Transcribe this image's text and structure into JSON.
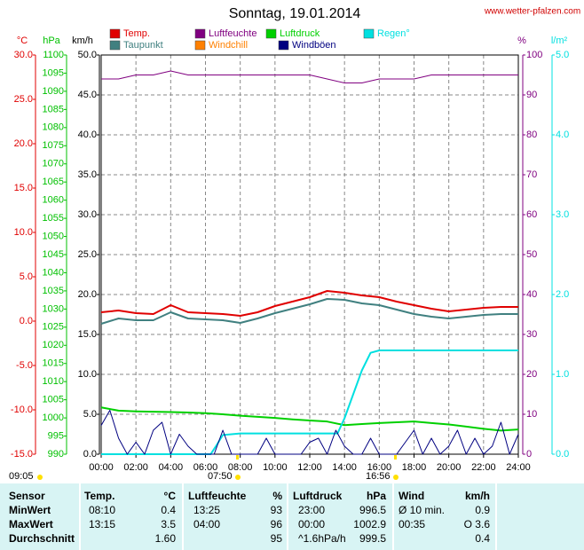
{
  "chart_data": {
    "type": "line",
    "title": "Sonntag, 19.01.2014",
    "source": "www.wetter-pfalzen.com",
    "xlim": [
      0,
      24
    ],
    "xticks": [
      {
        "value": 0,
        "label": "00:00"
      },
      {
        "value": 2,
        "label": "02:00"
      },
      {
        "value": 4,
        "label": "04:00"
      },
      {
        "value": 6,
        "label": "06:00"
      },
      {
        "value": 8,
        "label": "08:00"
      },
      {
        "value": 10,
        "label": "10:00"
      },
      {
        "value": 12,
        "label": "12:00"
      },
      {
        "value": 14,
        "label": "14:00"
      },
      {
        "value": 16,
        "label": "16:00"
      },
      {
        "value": 18,
        "label": "18:00"
      },
      {
        "value": 20,
        "label": "20:00"
      },
      {
        "value": 22,
        "label": "22:00"
      },
      {
        "value": 24,
        "label": "24:00"
      }
    ],
    "grid": true,
    "axes": [
      {
        "label": "°C",
        "color": "#e00000",
        "lim": [
          -15,
          30
        ],
        "ticks": [
          {
            "value": -15,
            "label": "-15.0"
          },
          {
            "value": -10,
            "label": "-10.0"
          },
          {
            "value": -5,
            "label": "-5.0"
          },
          {
            "value": 0,
            "label": "0.0"
          },
          {
            "value": 5,
            "label": "5.0"
          },
          {
            "value": 10,
            "label": "10.0"
          },
          {
            "value": 15,
            "label": "15.0"
          },
          {
            "value": 20,
            "label": "20.0"
          },
          {
            "value": 25,
            "label": "25.0"
          },
          {
            "value": 30,
            "label": "30.0"
          }
        ]
      },
      {
        "label": "hPa",
        "color": "#00c000",
        "lim": [
          990,
          1100
        ],
        "ticks": [
          990,
          995,
          1000,
          1005,
          1010,
          1015,
          1020,
          1025,
          1030,
          1035,
          1040,
          1045,
          1050,
          1055,
          1060,
          1065,
          1070,
          1075,
          1080,
          1085,
          1090,
          1095,
          1100
        ]
      },
      {
        "label": "km/h",
        "color": "#000000",
        "lim": [
          0,
          50
        ],
        "grid": true,
        "ticks": [
          {
            "value": 0,
            "label": "0.0"
          },
          {
            "value": 5,
            "label": "5.0"
          },
          {
            "value": 10,
            "label": "10.0"
          },
          {
            "value": 15,
            "label": "15.0"
          },
          {
            "value": 20,
            "label": "20.0"
          },
          {
            "value": 25,
            "label": "25.0"
          },
          {
            "value": 30,
            "label": "30.0"
          },
          {
            "value": 35,
            "label": "35.0"
          },
          {
            "value": 40,
            "label": "40.0"
          },
          {
            "value": 45,
            "label": "45.0"
          },
          {
            "value": 50,
            "label": "50.0"
          }
        ]
      },
      {
        "label": "%",
        "color": "#800080",
        "lim": [
          0,
          100
        ],
        "ticks": [
          0,
          10,
          20,
          30,
          40,
          50,
          60,
          70,
          80,
          90,
          100
        ]
      },
      {
        "label": "l/m²",
        "color": "#00e0e0",
        "lim": [
          0,
          5
        ],
        "ticks": [
          {
            "value": 0,
            "label": "0.0"
          },
          {
            "value": 1,
            "label": "1.0"
          },
          {
            "value": 2,
            "label": "2.0"
          },
          {
            "value": 3,
            "label": "3.0"
          },
          {
            "value": 4,
            "label": "4.0"
          },
          {
            "value": 5,
            "label": "5.0"
          }
        ]
      }
    ],
    "x": [
      0,
      1,
      2,
      3,
      4,
      5,
      6,
      7,
      8,
      9,
      10,
      11,
      12,
      13,
      14,
      15,
      16,
      17,
      18,
      19,
      20,
      21,
      22,
      23,
      24
    ],
    "series": [
      {
        "name": "Temp.",
        "color": "#e00000",
        "axis": 0,
        "values": [
          1.0,
          1.2,
          0.9,
          0.8,
          1.8,
          1.0,
          0.9,
          0.8,
          0.6,
          1.0,
          1.7,
          2.2,
          2.7,
          3.4,
          3.2,
          2.9,
          2.7,
          2.2,
          1.8,
          1.4,
          1.1,
          1.3,
          1.5,
          1.6,
          1.6
        ]
      },
      {
        "name": "Luftfeuchte",
        "color": "#800080",
        "axis": 3,
        "values": [
          94,
          94,
          95,
          95,
          96,
          95,
          95,
          95,
          95,
          95,
          95,
          95,
          95,
          94,
          93,
          93,
          94,
          94,
          94,
          95,
          95,
          95,
          95,
          95,
          95
        ]
      },
      {
        "name": "Luftdruck",
        "color": "#00d000",
        "axis": 1,
        "values": [
          1002.9,
          1002.0,
          1001.8,
          1001.7,
          1001.6,
          1001.5,
          1001.3,
          1001.0,
          1000.6,
          1000.3,
          1000.0,
          999.6,
          999.3,
          999.0,
          998.0,
          998.3,
          998.6,
          998.8,
          999.0,
          998.6,
          998.2,
          997.6,
          997.0,
          996.5,
          996.8
        ]
      },
      {
        "name": "Regen°",
        "color": "#00e0e0",
        "axis": 4,
        "x": [
          0,
          6.3,
          6.6,
          7,
          8,
          13.6,
          14,
          14.5,
          15,
          15.5,
          16,
          24
        ],
        "values": [
          0,
          0,
          0.1,
          0.24,
          0.26,
          0.26,
          0.45,
          0.75,
          1.05,
          1.27,
          1.3,
          1.3
        ]
      },
      {
        "name": "Taupunkt",
        "color": "#408080",
        "axis": 0,
        "values": [
          -0.3,
          0.3,
          0.1,
          0.1,
          1.0,
          0.3,
          0.2,
          0.1,
          -0.2,
          0.3,
          0.9,
          1.4,
          1.9,
          2.5,
          2.4,
          2.0,
          1.8,
          1.3,
          0.8,
          0.5,
          0.3,
          0.5,
          0.7,
          0.8,
          0.8
        ]
      },
      {
        "name": "Windchill",
        "color": "#ff8000",
        "axis": 0
      },
      {
        "name": "Windböen",
        "color": "#000080",
        "axis": 2,
        "x": [
          0,
          0.5,
          1,
          1.5,
          2,
          2.5,
          3,
          3.5,
          4,
          4.5,
          5,
          5.5,
          6,
          6.5,
          7,
          7.5,
          8,
          8.5,
          9,
          9.5,
          10,
          10.5,
          11,
          11.5,
          12,
          12.5,
          13,
          13.5,
          14,
          14.5,
          15,
          15.5,
          16,
          16.5,
          17,
          17.5,
          18,
          18.5,
          19,
          19.5,
          20,
          20.5,
          21,
          21.5,
          22,
          22.5,
          23,
          23.5,
          24
        ],
        "values": [
          3.6,
          5.5,
          2,
          0,
          1.5,
          0,
          3,
          4,
          0,
          2.5,
          1,
          0,
          0,
          0,
          3,
          0,
          0,
          0,
          0,
          2,
          0,
          0,
          0,
          0,
          1.5,
          2,
          0,
          3,
          1,
          0,
          0,
          2,
          0,
          0,
          0,
          1.5,
          3,
          0,
          2,
          0,
          1,
          3,
          0,
          2,
          0,
          1,
          4,
          0,
          2.5
        ]
      }
    ],
    "annotations": [
      "09:05",
      "07:50",
      "16:56"
    ]
  },
  "table": {
    "header": [
      "Sensor",
      "Temp.",
      "°C",
      "Luftfeuchte",
      "%",
      "Luftdruck",
      "hPa",
      "Wind",
      "km/h"
    ],
    "rows": [
      [
        "MinWert",
        "08:10",
        "0.4",
        "13:25",
        "93",
        "23:00",
        "996.5",
        "Ø 10 min.",
        "0.9"
      ],
      [
        "MaxWert",
        "13:15",
        "3.5",
        "04:00",
        "96",
        "00:00",
        "1002.9",
        "00:35",
        "O 3.6"
      ],
      [
        "Durchschnitt",
        null,
        "1.60",
        null,
        "95",
        "^1.6hPa/h",
        "999.5",
        null,
        "0.4"
      ]
    ]
  }
}
